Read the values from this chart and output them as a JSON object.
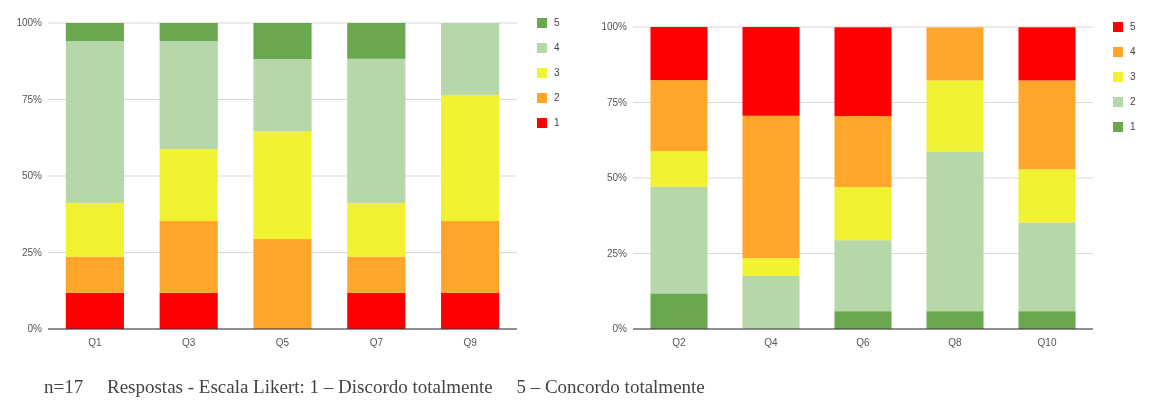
{
  "chart_data": [
    {
      "type": "bar",
      "stacked": true,
      "categories": [
        "Q1",
        "Q3",
        "Q5",
        "Q7",
        "Q9"
      ],
      "series": [
        {
          "name": "1",
          "color": "#ff0000",
          "values": [
            11.8,
            11.8,
            0,
            11.8,
            11.8
          ]
        },
        {
          "name": "2",
          "color": "#ffa62b",
          "values": [
            11.8,
            23.5,
            29.4,
            11.8,
            23.5
          ]
        },
        {
          "name": "3",
          "color": "#f1f231",
          "values": [
            17.6,
            23.5,
            35.3,
            17.6,
            41.2
          ]
        },
        {
          "name": "4",
          "color": "#b6d7a8",
          "values": [
            52.9,
            35.3,
            23.5,
            47.1,
            23.5
          ]
        },
        {
          "name": "5",
          "color": "#6aa84f",
          "values": [
            5.9,
            5.9,
            11.8,
            11.7,
            0
          ]
        }
      ],
      "ylim": [
        0,
        100
      ],
      "yticks": [
        {
          "value": 0,
          "label": "0%"
        },
        {
          "value": 25,
          "label": "25%"
        },
        {
          "value": 50,
          "label": "50%"
        },
        {
          "value": 75,
          "label": "75%"
        },
        {
          "value": 100,
          "label": "100%"
        }
      ],
      "grid": "y",
      "legend": "right",
      "annotations": [
        "n=17     Respostas - Escala Likert: 1 – Discordo totalmente     5 – Concordo totalmente"
      ]
    },
    {
      "type": "bar",
      "stacked": true,
      "categories": [
        "Q2",
        "Q4",
        "Q6",
        "Q8",
        "Q10"
      ],
      "series": [
        {
          "name": "1",
          "color": "#6aa84f",
          "values": [
            11.8,
            0,
            5.9,
            5.9,
            5.9
          ]
        },
        {
          "name": "2",
          "color": "#b6d7a8",
          "values": [
            35.3,
            17.6,
            23.5,
            52.9,
            29.4
          ]
        },
        {
          "name": "3",
          "color": "#f1f231",
          "values": [
            11.8,
            5.9,
            17.6,
            23.5,
            17.6
          ]
        },
        {
          "name": "4",
          "color": "#ffa62b",
          "values": [
            23.5,
            47.1,
            23.5,
            17.6,
            29.4
          ]
        },
        {
          "name": "5",
          "color": "#ff0000",
          "values": [
            17.6,
            29.4,
            29.4,
            0,
            17.6
          ]
        }
      ],
      "ylim": [
        0,
        100
      ],
      "yticks": [
        {
          "value": 0,
          "label": "0%"
        },
        {
          "value": 25,
          "label": "25%"
        },
        {
          "value": 50,
          "label": "50%"
        },
        {
          "value": 75,
          "label": "75%"
        },
        {
          "value": 100,
          "label": "100%"
        }
      ],
      "grid": "y",
      "legend": "right"
    }
  ]
}
